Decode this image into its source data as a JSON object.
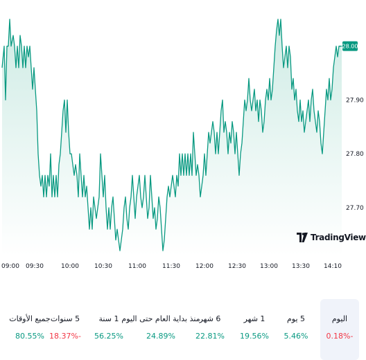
{
  "chart_data": {
    "type": "area",
    "x_ticks": [
      "09:00",
      "09:30",
      "10:00",
      "10:30",
      "11:00",
      "11:30",
      "12:00",
      "12:30",
      "13:00",
      "13:30",
      "14:10"
    ],
    "y_ticks": [
      "27.90",
      "27.80",
      "27.70"
    ],
    "last_price": "28.00",
    "ylim": [
      27.61,
      28.06
    ],
    "xlim": [
      0,
      490
    ],
    "series": [
      {
        "values": [
          [
            0,
            27.96
          ],
          [
            3,
            28.0
          ],
          [
            5,
            27.9
          ],
          [
            7,
            28.0
          ],
          [
            9,
            28.0
          ],
          [
            11,
            28.05
          ],
          [
            13,
            28.0
          ],
          [
            16,
            28.02
          ],
          [
            18,
            28.0
          ],
          [
            20,
            27.96
          ],
          [
            22,
            28.0
          ],
          [
            24,
            27.96
          ],
          [
            26,
            28.02
          ],
          [
            28,
            28.0
          ],
          [
            30,
            27.96
          ],
          [
            32,
            28.0
          ],
          [
            34,
            27.96
          ],
          [
            36,
            28.0
          ],
          [
            38,
            27.98
          ],
          [
            40,
            28.0
          ],
          [
            42,
            27.96
          ],
          [
            44,
            27.92
          ],
          [
            46,
            27.96
          ],
          [
            48,
            27.92
          ],
          [
            50,
            27.88
          ],
          [
            52,
            27.8
          ],
          [
            54,
            27.76
          ],
          [
            56,
            27.74
          ],
          [
            58,
            27.76
          ],
          [
            60,
            27.72
          ],
          [
            62,
            27.76
          ],
          [
            64,
            27.72
          ],
          [
            66,
            27.76
          ],
          [
            68,
            27.74
          ],
          [
            70,
            27.8
          ],
          [
            72,
            27.72
          ],
          [
            74,
            27.76
          ],
          [
            76,
            27.72
          ],
          [
            78,
            27.76
          ],
          [
            80,
            27.72
          ],
          [
            82,
            27.78
          ],
          [
            84,
            27.8
          ],
          [
            86,
            27.84
          ],
          [
            88,
            27.88
          ],
          [
            90,
            27.9
          ],
          [
            92,
            27.84
          ],
          [
            94,
            27.9
          ],
          [
            96,
            27.84
          ],
          [
            98,
            27.8
          ],
          [
            100,
            27.8
          ],
          [
            102,
            27.78
          ],
          [
            104,
            27.76
          ],
          [
            106,
            27.78
          ],
          [
            108,
            27.76
          ],
          [
            110,
            27.72
          ],
          [
            112,
            27.8
          ],
          [
            114,
            27.76
          ],
          [
            116,
            27.72
          ],
          [
            118,
            27.76
          ],
          [
            120,
            27.72
          ],
          [
            122,
            27.74
          ],
          [
            124,
            27.7
          ],
          [
            126,
            27.66
          ],
          [
            128,
            27.7
          ],
          [
            130,
            27.66
          ],
          [
            132,
            27.72
          ],
          [
            134,
            27.7
          ],
          [
            136,
            27.68
          ],
          [
            138,
            27.7
          ],
          [
            140,
            27.72
          ],
          [
            142,
            27.8
          ],
          [
            144,
            27.76
          ],
          [
            146,
            27.72
          ],
          [
            148,
            27.76
          ],
          [
            150,
            27.7
          ],
          [
            152,
            27.66
          ],
          [
            154,
            27.7
          ],
          [
            156,
            27.66
          ],
          [
            158,
            27.7
          ],
          [
            160,
            27.72
          ],
          [
            162,
            27.68
          ],
          [
            164,
            27.64
          ],
          [
            166,
            27.66
          ],
          [
            168,
            27.64
          ],
          [
            170,
            27.62
          ],
          [
            172,
            27.64
          ],
          [
            174,
            27.66
          ],
          [
            176,
            27.7
          ],
          [
            178,
            27.72
          ],
          [
            180,
            27.68
          ],
          [
            182,
            27.66
          ],
          [
            184,
            27.7
          ],
          [
            186,
            27.72
          ],
          [
            188,
            27.76
          ],
          [
            190,
            27.72
          ],
          [
            192,
            27.68
          ],
          [
            194,
            27.72
          ],
          [
            196,
            27.74
          ],
          [
            198,
            27.76
          ],
          [
            200,
            27.72
          ],
          [
            202,
            27.7
          ],
          [
            204,
            27.72
          ],
          [
            206,
            27.76
          ],
          [
            208,
            27.72
          ],
          [
            210,
            27.68
          ],
          [
            212,
            27.7
          ],
          [
            214,
            27.76
          ],
          [
            216,
            27.72
          ],
          [
            218,
            27.68
          ],
          [
            220,
            27.7
          ],
          [
            222,
            27.66
          ],
          [
            224,
            27.68
          ],
          [
            226,
            27.72
          ],
          [
            228,
            27.7
          ],
          [
            230,
            27.66
          ],
          [
            232,
            27.62
          ],
          [
            234,
            27.64
          ],
          [
            236,
            27.68
          ],
          [
            238,
            27.72
          ],
          [
            240,
            27.74
          ],
          [
            242,
            27.72
          ],
          [
            244,
            27.74
          ],
          [
            246,
            27.76
          ],
          [
            248,
            27.74
          ],
          [
            250,
            27.72
          ],
          [
            252,
            27.76
          ],
          [
            254,
            27.74
          ],
          [
            256,
            27.8
          ],
          [
            258,
            27.76
          ],
          [
            260,
            27.8
          ],
          [
            262,
            27.76
          ],
          [
            264,
            27.8
          ],
          [
            266,
            27.76
          ],
          [
            268,
            27.8
          ],
          [
            270,
            27.76
          ],
          [
            272,
            27.8
          ],
          [
            274,
            27.76
          ],
          [
            276,
            27.84
          ],
          [
            278,
            27.8
          ],
          [
            280,
            27.76
          ],
          [
            282,
            27.78
          ],
          [
            284,
            27.76
          ],
          [
            286,
            27.72
          ],
          [
            288,
            27.74
          ],
          [
            290,
            27.76
          ],
          [
            292,
            27.8
          ],
          [
            294,
            27.76
          ],
          [
            296,
            27.8
          ],
          [
            298,
            27.84
          ],
          [
            300,
            27.82
          ],
          [
            302,
            27.84
          ],
          [
            304,
            27.86
          ],
          [
            306,
            27.84
          ],
          [
            308,
            27.8
          ],
          [
            310,
            27.84
          ],
          [
            312,
            27.8
          ],
          [
            314,
            27.84
          ],
          [
            316,
            27.88
          ],
          [
            318,
            27.9
          ],
          [
            320,
            27.84
          ],
          [
            322,
            27.86
          ],
          [
            324,
            27.84
          ],
          [
            326,
            27.8
          ],
          [
            328,
            27.84
          ],
          [
            330,
            27.82
          ],
          [
            332,
            27.86
          ],
          [
            334,
            27.84
          ],
          [
            336,
            27.8
          ],
          [
            338,
            27.84
          ],
          [
            340,
            27.8
          ],
          [
            342,
            27.76
          ],
          [
            344,
            27.8
          ],
          [
            346,
            27.82
          ],
          [
            348,
            27.86
          ],
          [
            350,
            27.9
          ],
          [
            352,
            27.88
          ],
          [
            354,
            27.9
          ],
          [
            356,
            27.94
          ],
          [
            358,
            27.9
          ],
          [
            360,
            27.88
          ],
          [
            362,
            27.9
          ],
          [
            364,
            27.92
          ],
          [
            366,
            27.88
          ],
          [
            368,
            27.9
          ],
          [
            370,
            27.86
          ],
          [
            372,
            27.9
          ],
          [
            374,
            27.88
          ],
          [
            376,
            27.84
          ],
          [
            378,
            27.86
          ],
          [
            380,
            27.9
          ],
          [
            382,
            27.92
          ],
          [
            384,
            27.9
          ],
          [
            386,
            27.94
          ],
          [
            388,
            27.9
          ],
          [
            390,
            27.92
          ],
          [
            392,
            27.96
          ],
          [
            394,
            28.0
          ],
          [
            396,
            28.03
          ],
          [
            398,
            28.05
          ],
          [
            400,
            28.02
          ],
          [
            402,
            28.05
          ],
          [
            404,
            28.0
          ],
          [
            406,
            27.96
          ],
          [
            408,
            27.98
          ],
          [
            410,
            28.0
          ],
          [
            412,
            27.96
          ],
          [
            414,
            28.0
          ],
          [
            416,
            27.98
          ],
          [
            418,
            27.92
          ],
          [
            420,
            27.94
          ],
          [
            422,
            27.9
          ],
          [
            424,
            27.92
          ],
          [
            426,
            27.88
          ],
          [
            428,
            27.86
          ],
          [
            430,
            27.9
          ],
          [
            432,
            27.86
          ],
          [
            434,
            27.88
          ],
          [
            436,
            27.84
          ],
          [
            438,
            27.86
          ],
          [
            440,
            27.88
          ],
          [
            442,
            27.9
          ],
          [
            444,
            27.86
          ],
          [
            446,
            27.9
          ],
          [
            448,
            27.92
          ],
          [
            450,
            27.88
          ],
          [
            452,
            27.86
          ],
          [
            454,
            27.84
          ],
          [
            456,
            27.88
          ],
          [
            458,
            27.86
          ],
          [
            460,
            27.82
          ],
          [
            462,
            27.8
          ],
          [
            464,
            27.84
          ],
          [
            466,
            27.88
          ],
          [
            468,
            27.92
          ],
          [
            470,
            27.9
          ],
          [
            472,
            27.94
          ],
          [
            474,
            27.9
          ],
          [
            476,
            27.92
          ],
          [
            478,
            27.96
          ],
          [
            480,
            27.98
          ],
          [
            482,
            28.0
          ],
          [
            484,
            27.98
          ],
          [
            486,
            28.0
          ],
          [
            490,
            28.0
          ]
        ]
      }
    ]
  },
  "branding": {
    "logo_text": "TradingView"
  },
  "performance": [
    {
      "label": "اليوم",
      "value": "0.18%-",
      "tone": "neg",
      "selected": true
    },
    {
      "label": "5 يوم",
      "value": "5.46%",
      "tone": "pos"
    },
    {
      "label": "1 شهر",
      "value": "19.56%",
      "tone": "pos"
    },
    {
      "label": "6 شهر",
      "value": "22.81%",
      "tone": "pos"
    },
    {
      "label": "منذ بداية العام حتى اليوم",
      "value": "24.89%",
      "tone": "pos"
    },
    {
      "label": "1 سنة",
      "value": "56.25%",
      "tone": "pos"
    },
    {
      "label": "5 سنوات",
      "value": "18.37%-",
      "tone": "neg"
    },
    {
      "label": "جميع الأوقات",
      "value": "80.55%",
      "tone": "pos"
    }
  ],
  "colors": {
    "line": "#089981",
    "fill_top": "#d6efe9",
    "fill_bottom": "#ffffff",
    "price_badge": "#089981"
  }
}
